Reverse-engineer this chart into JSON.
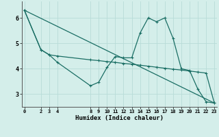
{
  "background_color": "#d4eeea",
  "line_color": "#1a6e64",
  "xlabel": "Humidex (Indice chaleur)",
  "line1_x": [
    0,
    2,
    3,
    4,
    8,
    9,
    10,
    11,
    12,
    13,
    14,
    15,
    16,
    17,
    18,
    19,
    20,
    21,
    22,
    23
  ],
  "line1_y": [
    6.3,
    4.75,
    4.55,
    4.25,
    3.33,
    3.47,
    4.05,
    4.48,
    4.43,
    4.43,
    5.4,
    6.0,
    5.85,
    6.0,
    5.2,
    4.0,
    3.93,
    3.2,
    2.7,
    2.65
  ],
  "line2_x": [
    0,
    2,
    3,
    4,
    8,
    9,
    10,
    11,
    12,
    13,
    14,
    15,
    16,
    17,
    18,
    19,
    20,
    21,
    22,
    23
  ],
  "line2_y": [
    6.3,
    4.75,
    4.55,
    4.5,
    4.35,
    4.32,
    4.28,
    4.25,
    4.21,
    4.18,
    4.14,
    4.1,
    4.06,
    4.02,
    3.98,
    3.95,
    3.91,
    3.87,
    3.83,
    2.65
  ],
  "line3_x": [
    0,
    23
  ],
  "line3_y": [
    6.3,
    2.65
  ],
  "xlim": [
    -0.3,
    23.3
  ],
  "ylim": [
    2.5,
    6.65
  ],
  "xticks": [
    0,
    2,
    3,
    4,
    8,
    9,
    10,
    11,
    12,
    13,
    14,
    15,
    16,
    17,
    18,
    19,
    20,
    21,
    22,
    23
  ],
  "yticks": [
    3,
    4,
    5,
    6
  ],
  "grid_color": "#b8dcd8",
  "marker": "+"
}
